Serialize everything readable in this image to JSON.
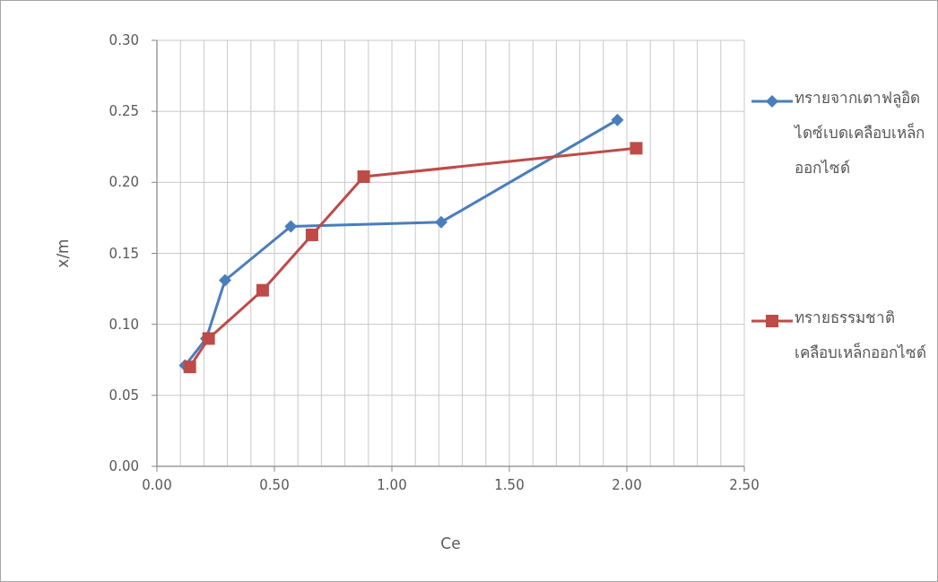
{
  "chart_data": {
    "type": "line",
    "xlabel": "Ce",
    "ylabel": "x/m",
    "xlim": [
      0,
      2.5
    ],
    "xticks": [
      {
        "value": 0,
        "label": "0.00"
      },
      {
        "value": 0.1,
        "label": null
      },
      {
        "value": 0.2,
        "label": null
      },
      {
        "value": 0.3,
        "label": null
      },
      {
        "value": 0.4,
        "label": null
      },
      {
        "value": 0.5,
        "label": "0.50"
      },
      {
        "value": 0.6,
        "label": null
      },
      {
        "value": 0.7,
        "label": null
      },
      {
        "value": 0.8,
        "label": null
      },
      {
        "value": 0.9,
        "label": null
      },
      {
        "value": 1.0,
        "label": "1.00"
      },
      {
        "value": 1.1,
        "label": null
      },
      {
        "value": 1.2,
        "label": null
      },
      {
        "value": 1.3,
        "label": null
      },
      {
        "value": 1.4,
        "label": null
      },
      {
        "value": 1.5,
        "label": "1.50"
      },
      {
        "value": 1.6,
        "label": null
      },
      {
        "value": 1.7,
        "label": null
      },
      {
        "value": 1.8,
        "label": null
      },
      {
        "value": 1.9,
        "label": null
      },
      {
        "value": 2.0,
        "label": "2.00"
      },
      {
        "value": 2.1,
        "label": null
      },
      {
        "value": 2.2,
        "label": null
      },
      {
        "value": 2.3,
        "label": null
      },
      {
        "value": 2.4,
        "label": null
      },
      {
        "value": 2.5,
        "label": "2.50"
      }
    ],
    "ylim": [
      0,
      0.3
    ],
    "yticks": [
      {
        "value": 0,
        "label": "0.00"
      },
      {
        "value": 0.05,
        "label": "0.05"
      },
      {
        "value": 0.1,
        "label": "0.10"
      },
      {
        "value": 0.15,
        "label": "0.15"
      },
      {
        "value": 0.2,
        "label": "0.20"
      },
      {
        "value": 0.25,
        "label": "0.25"
      },
      {
        "value": 0.3,
        "label": "0.30"
      }
    ],
    "grid": true,
    "legend": "right",
    "line_style": "solid",
    "series": [
      {
        "name": "ทรายจากเตาฟลูอิดไดซ์เบดเคลือบเหล็กออกไซด์",
        "color": "#4a7ebb",
        "marker": "diamond",
        "x": [
          0.12,
          0.21,
          0.29,
          0.57,
          1.21,
          1.96
        ],
        "values": [
          0.071,
          0.09,
          0.131,
          0.169,
          0.172,
          0.244
        ]
      },
      {
        "name": "ทรายธรรมชาติเคลือบเหล็กออกไซด์",
        "color": "#be4b48",
        "marker": "square",
        "x": [
          0.14,
          0.22,
          0.45,
          0.66,
          0.88,
          2.04
        ],
        "values": [
          0.07,
          0.09,
          0.124,
          0.163,
          0.204,
          0.224
        ]
      }
    ]
  }
}
